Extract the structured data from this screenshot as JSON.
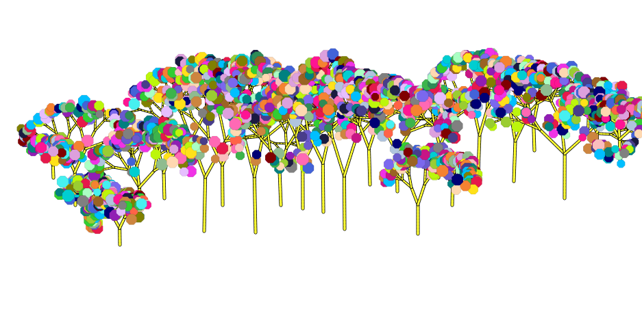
{
  "scene": {
    "background_color": "#ffffff",
    "branch_color": "#ffff33",
    "branch_outline_color": "#000000",
    "tree_count": 24,
    "leaf_palette": [
      "#e6194b",
      "#3cb44b",
      "#ffe119",
      "#4363d8",
      "#f58231",
      "#911eb4",
      "#46f0f0",
      "#f032e6",
      "#bcf60c",
      "#fabebe",
      "#008080",
      "#e6beff",
      "#9a6324",
      "#800000",
      "#aaffc3",
      "#808000",
      "#ffd8b1",
      "#000075",
      "#808080",
      "#1a1a40",
      "#7b68ee",
      "#ff69b4",
      "#00ced1",
      "#8fbc8f",
      "#b0c4de",
      "#6a5acd",
      "#32cd32",
      "#ff1493",
      "#00bfff",
      "#c71585",
      "#2e8b57",
      "#dda0dd",
      "#cd853f",
      "#483d8b",
      "#9acd32",
      "#ff6347"
    ]
  }
}
